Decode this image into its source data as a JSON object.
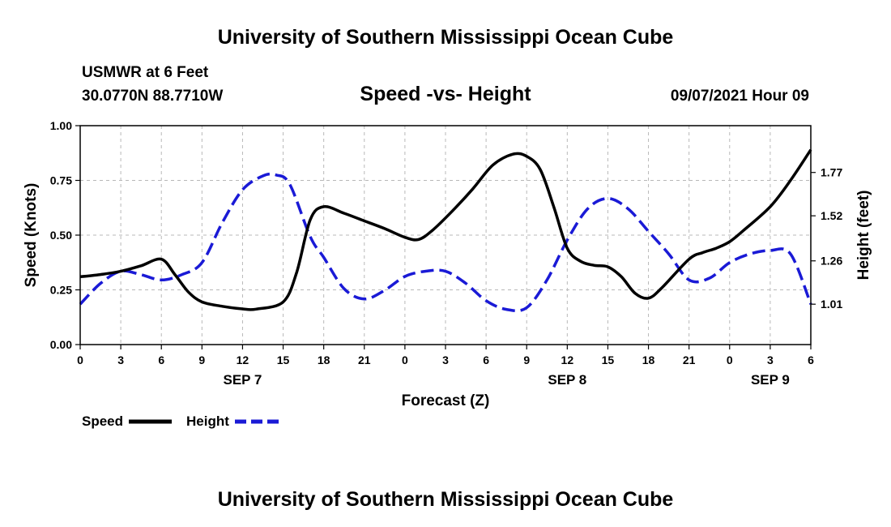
{
  "chart_data": {
    "type": "line",
    "title": "University of Southern Mississippi Ocean Cube",
    "footer": "University of Southern Mississippi Ocean Cube",
    "chart_title": "Speed -vs- Height",
    "station": "USMWR at 6 Feet",
    "location": "30.0770N  88.7710W",
    "timestamp": "09/07/2021 Hour 09",
    "xlabel": "Forecast (Z)",
    "ylabel_left": "Speed (Knots)",
    "ylabel_right": "Height (feet)",
    "x_range": [
      0,
      54
    ],
    "x_tick_values": [
      0,
      3,
      6,
      9,
      12,
      15,
      18,
      21,
      24,
      27,
      30,
      33,
      36,
      39,
      42,
      45,
      48,
      51,
      54
    ],
    "x_tick_labels": [
      "0",
      "3",
      "6",
      "9",
      "12",
      "15",
      "18",
      "21",
      "0",
      "3",
      "6",
      "9",
      "12",
      "15",
      "18",
      "21",
      "0",
      "3",
      "6"
    ],
    "day_labels": [
      {
        "text": "SEP 7",
        "x": 12
      },
      {
        "text": "SEP 8",
        "x": 36
      },
      {
        "text": "SEP 9",
        "x": 51
      }
    ],
    "y_left": {
      "min": 0,
      "max": 1,
      "ticks": [
        0,
        0.25,
        0.5,
        0.75,
        1.0
      ],
      "tick_labels": [
        "0.00",
        "0.25",
        "0.50",
        "0.75",
        "1.00"
      ]
    },
    "y_right": {
      "min": 0.777,
      "max": 2.04,
      "ticks": [
        1.01,
        1.26,
        1.52,
        1.77
      ],
      "tick_labels": [
        "1.01",
        "1.26",
        "1.52",
        "1.77"
      ]
    },
    "grid": true,
    "series": [
      {
        "name": "Speed",
        "axis": "left",
        "color": "#000000",
        "dash": "solid",
        "x": [
          0,
          1.5,
          3,
          4.5,
          6,
          7,
          8,
          9,
          10.5,
          12,
          13,
          15,
          16,
          17,
          18,
          19.5,
          21,
          22.5,
          24,
          25,
          26,
          27.5,
          29,
          30.5,
          32,
          33,
          34,
          35,
          36,
          37,
          38,
          39,
          40,
          41,
          42,
          43,
          45,
          46,
          47,
          48,
          49,
          51,
          52.5,
          54
        ],
        "values": [
          0.31,
          0.32,
          0.335,
          0.36,
          0.39,
          0.32,
          0.24,
          0.195,
          0.175,
          0.163,
          0.162,
          0.195,
          0.33,
          0.57,
          0.63,
          0.6,
          0.565,
          0.53,
          0.49,
          0.48,
          0.52,
          0.61,
          0.71,
          0.82,
          0.87,
          0.86,
          0.8,
          0.63,
          0.44,
          0.38,
          0.362,
          0.355,
          0.31,
          0.235,
          0.212,
          0.26,
          0.39,
          0.42,
          0.44,
          0.47,
          0.52,
          0.63,
          0.75,
          0.89
        ]
      },
      {
        "name": "Height",
        "axis": "right",
        "color": "#1a1ad6",
        "dash": "dashed",
        "x": [
          0,
          1.5,
          3,
          4.5,
          6,
          7.5,
          9,
          10.5,
          12,
          13.5,
          14.5,
          15.5,
          17,
          18,
          19.5,
          21,
          22.5,
          24,
          25.5,
          27,
          28.5,
          30,
          31.5,
          33,
          34.5,
          36,
          37.5,
          39,
          40.5,
          42,
          43.5,
          45,
          46.5,
          48,
          49.5,
          51,
          52.5,
          54
        ],
        "values": [
          1.01,
          1.13,
          1.2,
          1.18,
          1.15,
          1.18,
          1.25,
          1.48,
          1.67,
          1.75,
          1.755,
          1.7,
          1.4,
          1.28,
          1.1,
          1.04,
          1.09,
          1.17,
          1.2,
          1.2,
          1.13,
          1.03,
          0.98,
          0.99,
          1.15,
          1.38,
          1.56,
          1.62,
          1.56,
          1.43,
          1.3,
          1.15,
          1.16,
          1.25,
          1.3,
          1.32,
          1.3,
          1.01
        ]
      }
    ],
    "legend": [
      {
        "label": "Speed",
        "color": "#000000",
        "dash": "solid"
      },
      {
        "label": "Height",
        "color": "#1a1ad6",
        "dash": "dashed"
      }
    ]
  }
}
